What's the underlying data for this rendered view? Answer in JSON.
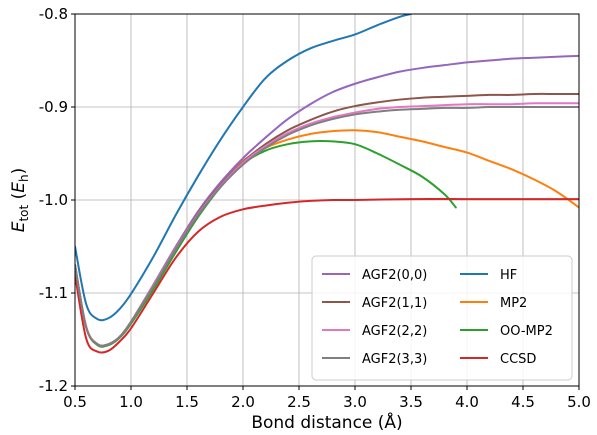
{
  "chart_data": {
    "type": "line",
    "xlabel": "Bond distance (Å)",
    "ylabel": "E_tot (E_h)",
    "ylabel_parts": {
      "main": "E",
      "sub1": "tot",
      "open": " (",
      "main2": "E",
      "sub2": "h",
      "close": ")"
    },
    "xlim": [
      0.5,
      5.0
    ],
    "ylim": [
      -1.2,
      -0.8
    ],
    "grid": true,
    "legend_position": "lower-right",
    "x_ticks": [
      {
        "value": 0.5,
        "label": "0.5"
      },
      {
        "value": 1.0,
        "label": "1.0"
      },
      {
        "value": 1.5,
        "label": "1.5"
      },
      {
        "value": 2.0,
        "label": "2.0"
      },
      {
        "value": 2.5,
        "label": "2.5"
      },
      {
        "value": 3.0,
        "label": "3.0"
      },
      {
        "value": 3.5,
        "label": "3.5"
      },
      {
        "value": 4.0,
        "label": "4.0"
      },
      {
        "value": 4.5,
        "label": "4.5"
      },
      {
        "value": 5.0,
        "label": "5.0"
      }
    ],
    "y_ticks": [
      {
        "value": -0.8,
        "label": "-0.8"
      },
      {
        "value": -0.9,
        "label": "-0.9"
      },
      {
        "value": -1.0,
        "label": "-1.0"
      },
      {
        "value": -1.1,
        "label": "-1.1"
      },
      {
        "value": -1.2,
        "label": "-1.2"
      }
    ],
    "series": [
      {
        "name": "HF",
        "color": "#1f77b4",
        "x": [
          0.5,
          0.6,
          0.7,
          0.8,
          0.9,
          1.0,
          1.2,
          1.4,
          1.6,
          1.8,
          2.0,
          2.2,
          2.4,
          2.6,
          2.8,
          3.0,
          3.2,
          3.4,
          3.5
        ],
        "y": [
          -1.05,
          -1.112,
          -1.128,
          -1.127,
          -1.117,
          -1.101,
          -1.061,
          -1.016,
          -0.974,
          -0.935,
          -0.9,
          -0.869,
          -0.85,
          -0.837,
          -0.829,
          -0.822,
          -0.812,
          -0.803,
          -0.8
        ]
      },
      {
        "name": "MP2",
        "color": "#ff7f0e",
        "x": [
          0.5,
          0.6,
          0.7,
          0.8,
          0.9,
          1.0,
          1.2,
          1.4,
          1.6,
          1.8,
          2.0,
          2.2,
          2.4,
          2.6,
          2.8,
          3.0,
          3.2,
          3.4,
          3.6,
          3.8,
          4.0,
          4.2,
          4.4,
          4.6,
          4.8,
          5.0
        ],
        "y": [
          -1.07,
          -1.136,
          -1.155,
          -1.155,
          -1.147,
          -1.132,
          -1.094,
          -1.054,
          -1.015,
          -0.983,
          -0.958,
          -0.944,
          -0.935,
          -0.929,
          -0.926,
          -0.925,
          -0.927,
          -0.932,
          -0.937,
          -0.943,
          -0.949,
          -0.958,
          -0.967,
          -0.978,
          -0.991,
          -1.008
        ]
      },
      {
        "name": "OO-MP2",
        "color": "#2ca02c",
        "x": [
          0.5,
          0.6,
          0.7,
          0.8,
          0.9,
          1.0,
          1.2,
          1.4,
          1.6,
          1.8,
          2.0,
          2.2,
          2.4,
          2.6,
          2.8,
          3.0,
          3.2,
          3.4,
          3.6,
          3.8,
          3.9
        ],
        "y": [
          -1.07,
          -1.137,
          -1.156,
          -1.156,
          -1.148,
          -1.133,
          -1.096,
          -1.056,
          -1.018,
          -0.986,
          -0.961,
          -0.947,
          -0.94,
          -0.937,
          -0.937,
          -0.94,
          -0.95,
          -0.962,
          -0.975,
          -0.994,
          -1.008
        ]
      },
      {
        "name": "CCSD",
        "color": "#d62728",
        "x": [
          0.5,
          0.6,
          0.7,
          0.8,
          0.9,
          1.0,
          1.2,
          1.4,
          1.6,
          1.8,
          2.0,
          2.2,
          2.4,
          2.6,
          2.8,
          3.0,
          3.5,
          4.0,
          4.5,
          5.0
        ],
        "y": [
          -1.08,
          -1.149,
          -1.163,
          -1.162,
          -1.152,
          -1.138,
          -1.1,
          -1.062,
          -1.034,
          -1.018,
          -1.01,
          -1.006,
          -1.003,
          -1.001,
          -1.0,
          -1.0,
          -0.999,
          -0.999,
          -0.999,
          -0.999
        ]
      },
      {
        "name": "AGF2(0,0)",
        "color": "#9467bd",
        "x": [
          0.5,
          0.6,
          0.7,
          0.8,
          0.9,
          1.0,
          1.2,
          1.4,
          1.6,
          1.8,
          2.0,
          2.2,
          2.4,
          2.6,
          2.8,
          3.0,
          3.2,
          3.4,
          3.6,
          3.8,
          4.0,
          4.2,
          4.4,
          4.6,
          4.8,
          5.0
        ],
        "y": [
          -1.07,
          -1.137,
          -1.155,
          -1.155,
          -1.147,
          -1.131,
          -1.091,
          -1.05,
          -1.012,
          -0.981,
          -0.955,
          -0.933,
          -0.913,
          -0.897,
          -0.884,
          -0.875,
          -0.868,
          -0.862,
          -0.858,
          -0.855,
          -0.852,
          -0.85,
          -0.848,
          -0.847,
          -0.846,
          -0.845
        ]
      },
      {
        "name": "AGF2(1,1)",
        "color": "#8c564b",
        "x": [
          0.5,
          0.6,
          0.7,
          0.8,
          0.9,
          1.0,
          1.2,
          1.4,
          1.6,
          1.8,
          2.0,
          2.2,
          2.4,
          2.6,
          2.8,
          3.0,
          3.2,
          3.4,
          3.6,
          3.8,
          4.0,
          4.2,
          4.4,
          4.6,
          4.8,
          5.0
        ],
        "y": [
          -1.07,
          -1.137,
          -1.155,
          -1.155,
          -1.147,
          -1.131,
          -1.092,
          -1.052,
          -1.014,
          -0.984,
          -0.959,
          -0.94,
          -0.925,
          -0.914,
          -0.905,
          -0.899,
          -0.895,
          -0.892,
          -0.89,
          -0.889,
          -0.888,
          -0.887,
          -0.887,
          -0.886,
          -0.886,
          -0.886
        ]
      },
      {
        "name": "AGF2(2,2)",
        "color": "#e377c2",
        "x": [
          0.5,
          0.6,
          0.7,
          0.8,
          0.9,
          1.0,
          1.2,
          1.4,
          1.6,
          1.8,
          2.0,
          2.2,
          2.4,
          2.6,
          2.8,
          3.0,
          3.2,
          3.4,
          3.6,
          3.8,
          4.0,
          4.2,
          4.4,
          4.6,
          4.8,
          5.0
        ],
        "y": [
          -1.07,
          -1.137,
          -1.155,
          -1.155,
          -1.147,
          -1.131,
          -1.092,
          -1.052,
          -1.015,
          -0.985,
          -0.96,
          -0.942,
          -0.928,
          -0.918,
          -0.911,
          -0.906,
          -0.902,
          -0.9,
          -0.899,
          -0.898,
          -0.897,
          -0.897,
          -0.897,
          -0.896,
          -0.896,
          -0.896
        ]
      },
      {
        "name": "AGF2(3,3)",
        "color": "#7f7f7f",
        "x": [
          0.5,
          0.6,
          0.7,
          0.8,
          0.9,
          1.0,
          1.2,
          1.4,
          1.6,
          1.8,
          2.0,
          2.2,
          2.4,
          2.6,
          2.8,
          3.0,
          3.2,
          3.4,
          3.6,
          3.8,
          4.0,
          4.2,
          4.4,
          4.6,
          4.8,
          5.0
        ],
        "y": [
          -1.07,
          -1.137,
          -1.155,
          -1.155,
          -1.147,
          -1.131,
          -1.093,
          -1.053,
          -1.016,
          -0.986,
          -0.962,
          -0.944,
          -0.93,
          -0.92,
          -0.913,
          -0.908,
          -0.905,
          -0.903,
          -0.902,
          -0.901,
          -0.901,
          -0.9,
          -0.9,
          -0.9,
          -0.9,
          -0.9
        ]
      }
    ],
    "legend": {
      "columns": [
        [
          "AGF2(0,0)",
          "AGF2(1,1)",
          "AGF2(2,2)",
          "AGF2(3,3)"
        ],
        [
          "HF",
          "MP2",
          "OO-MP2",
          "CCSD"
        ]
      ]
    }
  }
}
